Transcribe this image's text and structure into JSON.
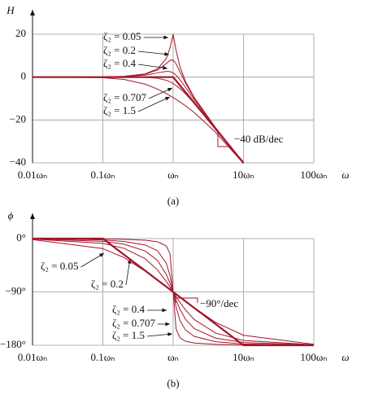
{
  "chart_data": [
    {
      "type": "line",
      "panel_label": "(a)",
      "y_label": "H",
      "x_label": "ω",
      "xscale": "log",
      "grid": true,
      "x": [
        0.01,
        0.1,
        0.2,
        0.4,
        0.6,
        0.8,
        0.9,
        1,
        1.1,
        1.25,
        1.5,
        2,
        4,
        10
      ],
      "xlim": [
        0.01,
        100
      ],
      "xticks": [
        {
          "value": 0.01,
          "label": "0.01ωₙ"
        },
        {
          "value": 0.1,
          "label": "0.1ωₙ"
        },
        {
          "value": 1,
          "label": "ωₙ"
        },
        {
          "value": 10,
          "label": "10ωₙ"
        },
        {
          "value": 100,
          "label": "100ωₙ"
        }
      ],
      "ylim": [
        -40,
        20
      ],
      "yticks": [
        {
          "value": -40,
          "label": "−40"
        },
        {
          "value": -20,
          "label": "−20"
        },
        0,
        20
      ],
      "series": [
        {
          "name": "ζ₂ = 0.05",
          "color": "#a3162c",
          "values": [
            0,
            0.09,
            0.35,
            1.5,
            3.84,
            8.67,
            13.55,
            20,
            12.5,
            4.79,
            -2.0,
            -9.56,
            -23.53,
            -39.91
          ]
        },
        {
          "name": "ζ₂ = 0.2",
          "color": "#a3162c",
          "values": [
            0,
            0.08,
            0.33,
            1.36,
            3.31,
            6.35,
            7.81,
            7.96,
            6.24,
            2.47,
            -2.84,
            -9.84,
            -23.57,
            -39.92
          ]
        },
        {
          "name": "ζ₂ = 0.4",
          "color": "#a3162c",
          "values": [
            0,
            0.06,
            0.24,
            0.93,
            1.94,
            2.68,
            2.56,
            1.94,
            0.87,
            -1.19,
            -4.78,
            -10.63,
            -23.72,
            -39.94
          ]
        },
        {
          "name": "ζ₂ = 0.707",
          "color": "#a3162c",
          "values": [
            0,
            0,
            -0.01,
            -0.11,
            -0.53,
            -1.49,
            -2.19,
            -3.01,
            -3.92,
            -5.37,
            -7.83,
            -12.3,
            -24.1,
            -40
          ]
        },
        {
          "name": "ζ₂ = 1.5",
          "color": "#a3162c",
          "values": [
            0,
            -0.29,
            -1.08,
            -3.32,
            -5.62,
            -7.7,
            -8.65,
            -9.54,
            -10.39,
            -11.58,
            -13.39,
            -16.53,
            -25.67,
            -40.29
          ]
        },
        {
          "color": "#a3162c",
          "linewidth": 2.2,
          "values": [
            0,
            0,
            0,
            0,
            0,
            0,
            0,
            0,
            -1.66,
            -3.88,
            -7.04,
            -12.04,
            -24.08,
            -40
          ]
        }
      ],
      "annotations": [
        "−40 dB/dec"
      ]
    },
    {
      "type": "line",
      "panel_label": "(b)",
      "y_label": "ϕ",
      "x_label": "ω",
      "xscale": "log",
      "grid": true,
      "x": [
        0.01,
        0.1,
        0.2,
        0.4,
        0.6,
        0.8,
        0.9,
        1,
        1.1,
        1.25,
        1.5,
        2,
        4,
        10,
        100
      ],
      "xlim": [
        0.01,
        100
      ],
      "xticks": [
        {
          "value": 0.01,
          "label": "0.01ωₙ"
        },
        {
          "value": 0.1,
          "label": "0.1ωₙ"
        },
        {
          "value": 1,
          "label": "ωₙ"
        },
        {
          "value": 10,
          "label": "10ωₙ"
        },
        {
          "value": 100,
          "label": "100ωₙ"
        }
      ],
      "ylim": [
        -180,
        0
      ],
      "yticks": [
        {
          "value": -180,
          "label": "−180°"
        },
        {
          "value": -90,
          "label": "−90°"
        },
        {
          "value": 0,
          "label": "0°"
        }
      ],
      "series": [
        {
          "name": "ζ₂ = 0.05",
          "color": "#a3162c",
          "values": [
            -0.06,
            -0.58,
            -1.19,
            -2.73,
            -5.36,
            -12.53,
            -25.35,
            -90,
            -152.35,
            -167.47,
            -173.16,
            -176.19,
            -178.47,
            -179.42,
            -179.94
          ]
        },
        {
          "name": "ζ₂ = 0.2",
          "color": "#a3162c",
          "values": [
            -0.23,
            -2.31,
            -4.76,
            -10.78,
            -20.56,
            -41.63,
            -62.18,
            -90,
            -115.51,
            -138.37,
            -154.36,
            -165.07,
            -173.91,
            -177.69,
            -179.77
          ]
        },
        {
          "name": "ζ₂ = 0.4",
          "color": "#a3162c",
          "values": [
            -0.46,
            -4.62,
            -9.46,
            -20.85,
            -36.87,
            -60.64,
            -75.22,
            -90,
            -103.42,
            -119.36,
            -136.17,
            -151.93,
            -167.96,
            -175.38,
            -179.54
          ]
        },
        {
          "name": "ζ₂ = 0.707",
          "color": "#a3162c",
          "values": [
            -0.81,
            -8.13,
            -16.41,
            -33.96,
            -52.97,
            -72.34,
            -81.51,
            -90,
            -97.69,
            -107.66,
            -120.51,
            -136.69,
            -159.34,
            -171.87,
            -179.19
          ]
        },
        {
          "name": "ζ₂ = 1.5",
          "color": "#a3162c",
          "values": [
            -1.72,
            -16.86,
            -32.01,
            -55.01,
            -70.42,
            -81.47,
            -85.97,
            -90,
            -93.64,
            -98.53,
            -105.52,
            -116.57,
            -141.34,
            -163.14,
            -178.28
          ]
        },
        {
          "color": "#a3162c",
          "linewidth": 2.2,
          "values": [
            0,
            0,
            -27.09,
            -54.18,
            -70.03,
            -81.28,
            -85.88,
            -90,
            -93.73,
            -98.72,
            -105.85,
            -117.09,
            -144.18,
            -180,
            -180
          ]
        }
      ],
      "annotations": [
        "−90°/dec"
      ]
    }
  ]
}
